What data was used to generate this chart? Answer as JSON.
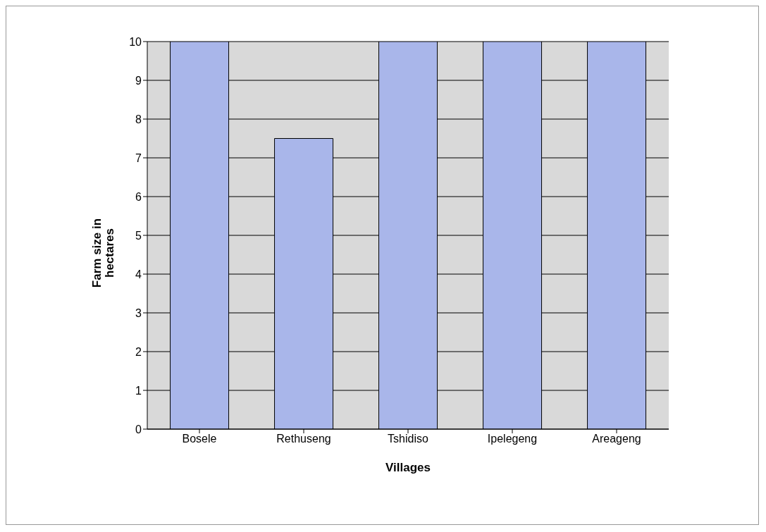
{
  "chart_data": {
    "type": "bar",
    "xlabel": "Villages",
    "ylabel": "Farm size in hectares",
    "categories": [
      "Bosele",
      "Rethuseng",
      "Tshidiso",
      "Ipelegeng",
      "Areageng"
    ],
    "values": [
      10,
      7.5,
      10,
      10,
      10
    ],
    "color": "#a9b6ea",
    "ylim": [
      0,
      10
    ],
    "yticks": [
      0,
      1,
      2,
      3,
      4,
      5,
      6,
      7,
      8,
      9,
      10
    ],
    "grid": "y"
  }
}
